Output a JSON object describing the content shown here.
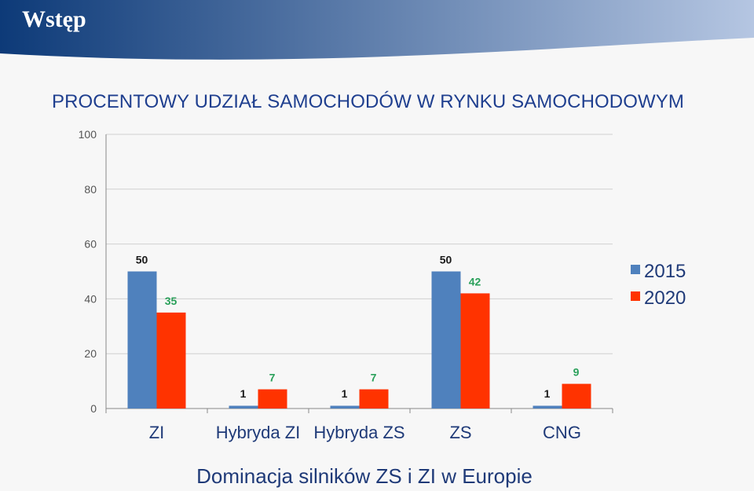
{
  "slide": {
    "title": "Wstęp",
    "caption": "Dominacja silników ZS i ZI w Europie"
  },
  "colors": {
    "banner_dark": "#0d3a78",
    "banner_light": "#b5c6e2",
    "series_2015": "#4f81bd",
    "series_2020": "#ff3300",
    "label_2015": "#1a1a1a",
    "label_2020": "#2aa05a"
  },
  "chart_data": {
    "type": "bar",
    "title": "PROCENTOWY UDZIAŁ SAMOCHODÓW W RYNKU SAMOCHODOWYM",
    "categories": [
      "ZI",
      "Hybryda ZI",
      "Hybryda ZS",
      "ZS",
      "CNG"
    ],
    "series": [
      {
        "name": "2015",
        "values": [
          50,
          1,
          1,
          50,
          1
        ]
      },
      {
        "name": "2020",
        "values": [
          35,
          7,
          7,
          42,
          9
        ]
      }
    ],
    "ylim": [
      0,
      100
    ],
    "yticks": [
      "0",
      "20",
      "40",
      "60",
      "80",
      "100"
    ],
    "grid": true,
    "legend": "right",
    "data_labels": true
  }
}
